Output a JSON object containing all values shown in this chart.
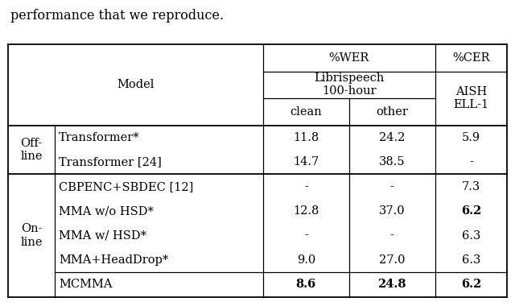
{
  "title_text": "performance that we reproduce.",
  "sections": [
    {
      "label": "Off-\nline",
      "rows": [
        {
          "model": "Transformer*",
          "clean": "11.8",
          "other": "24.2",
          "cer": "5.9",
          "bold_clean": false,
          "bold_other": false,
          "bold_cer": false
        },
        {
          "model": "Transformer [24]",
          "clean": "14.7",
          "other": "38.5",
          "cer": "-",
          "bold_clean": false,
          "bold_other": false,
          "bold_cer": false
        }
      ]
    },
    {
      "label": "On-\nline",
      "rows": [
        {
          "model": "CBPENC+SBDEC [12]",
          "clean": "-",
          "other": "-",
          "cer": "7.3",
          "bold_clean": false,
          "bold_other": false,
          "bold_cer": false
        },
        {
          "model": "MMA w/o HSD*",
          "clean": "12.8",
          "other": "37.0",
          "cer": "6.2",
          "bold_clean": false,
          "bold_other": false,
          "bold_cer": true
        },
        {
          "model": "MMA w/ HSD*",
          "clean": "-",
          "other": "-",
          "cer": "6.3",
          "bold_clean": false,
          "bold_other": false,
          "bold_cer": false
        },
        {
          "model": "MMA+HeadDrop*",
          "clean": "9.0",
          "other": "27.0",
          "cer": "6.3",
          "bold_clean": false,
          "bold_other": false,
          "bold_cer": false
        },
        {
          "model": "MCMMA",
          "clean": "8.6",
          "other": "24.8",
          "cer": "6.2",
          "bold_clean": true,
          "bold_other": true,
          "bold_cer": true
        }
      ]
    }
  ],
  "fontsize": 10.5,
  "title_fontsize": 11.5
}
